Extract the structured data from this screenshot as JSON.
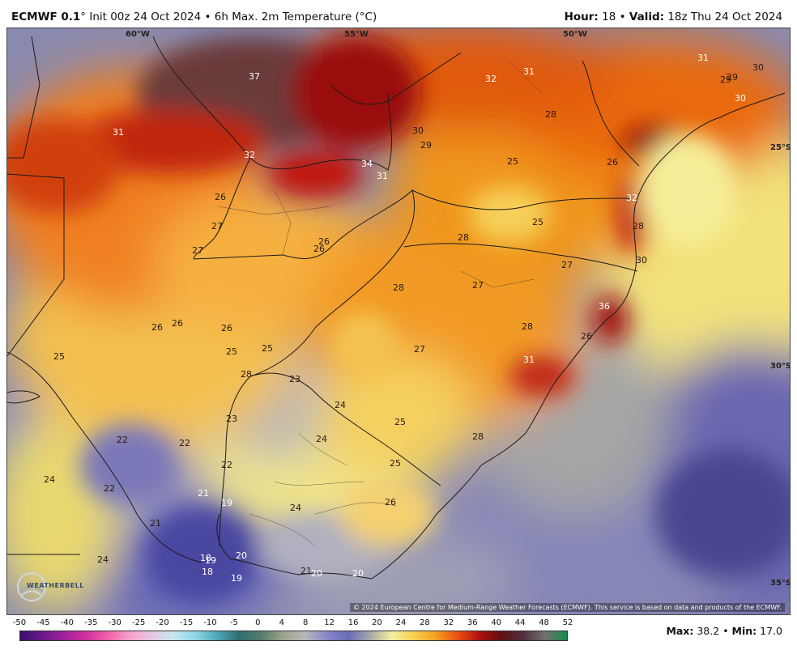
{
  "header": {
    "model": "ECMWF 0.1",
    "model_rest": "° Init 00z 24 Oct 2024 • 6h Max. 2m Temperature (°C)",
    "hour_label": "Hour:",
    "hour_value": "18",
    "sep": "•",
    "valid_label": "Valid:",
    "valid_value": "18z Thu 24 Oct 2024"
  },
  "map": {
    "lon_labels": [
      "60°W",
      "55°W",
      "50°W"
    ],
    "lat_labels": [
      "25°S",
      "30°S",
      "35°S"
    ],
    "credit": "© 2024 European Centre for Medium-Range Weather Forecasts (ECMWF). This service is based on data and products of the ECMWF.",
    "logo": "WEATHERBELL",
    "values": [
      {
        "v": "37",
        "t": "light"
      },
      {
        "v": "32",
        "t": "light"
      },
      {
        "v": "31",
        "t": "light"
      },
      {
        "v": "31",
        "t": "light"
      },
      {
        "v": "29",
        "t": "dark"
      },
      {
        "v": "29",
        "t": "dark"
      },
      {
        "v": "30",
        "t": "dark"
      },
      {
        "v": "30",
        "t": "light"
      },
      {
        "v": "31",
        "t": "light"
      },
      {
        "v": "32",
        "t": "light"
      },
      {
        "v": "34",
        "t": "light"
      },
      {
        "v": "31",
        "t": "light"
      },
      {
        "v": "30",
        "t": "dark"
      },
      {
        "v": "29",
        "t": "dark"
      },
      {
        "v": "28",
        "t": "dark"
      },
      {
        "v": "25",
        "t": "dark"
      },
      {
        "v": "26",
        "t": "dark"
      },
      {
        "v": "32",
        "t": "light"
      },
      {
        "v": "26",
        "t": "dark"
      },
      {
        "v": "27",
        "t": "dark"
      },
      {
        "v": "27",
        "t": "dark"
      },
      {
        "v": "26",
        "t": "dark"
      },
      {
        "v": "26",
        "t": "dark"
      },
      {
        "v": "25",
        "t": "dark"
      },
      {
        "v": "28",
        "t": "dark"
      },
      {
        "v": "28",
        "t": "dark"
      },
      {
        "v": "27",
        "t": "dark"
      },
      {
        "v": "27",
        "t": "dark"
      },
      {
        "v": "28",
        "t": "dark"
      },
      {
        "v": "30",
        "t": "dark"
      },
      {
        "v": "36",
        "t": "light"
      },
      {
        "v": "28",
        "t": "dark"
      },
      {
        "v": "26",
        "t": "dark"
      },
      {
        "v": "31",
        "t": "light"
      },
      {
        "v": "27",
        "t": "dark"
      },
      {
        "v": "26",
        "t": "dark"
      },
      {
        "v": "26",
        "t": "dark"
      },
      {
        "v": "26",
        "t": "dark"
      },
      {
        "v": "25",
        "t": "dark"
      },
      {
        "v": "25",
        "t": "dark"
      },
      {
        "v": "25",
        "t": "dark"
      },
      {
        "v": "28",
        "t": "dark"
      },
      {
        "v": "23",
        "t": "dark"
      },
      {
        "v": "24",
        "t": "dark"
      },
      {
        "v": "25",
        "t": "dark"
      },
      {
        "v": "23",
        "t": "dark"
      },
      {
        "v": "24",
        "t": "dark"
      },
      {
        "v": "28",
        "t": "dark"
      },
      {
        "v": "22",
        "t": "dark"
      },
      {
        "v": "22",
        "t": "dark"
      },
      {
        "v": "25",
        "t": "dark"
      },
      {
        "v": "22",
        "t": "dark"
      },
      {
        "v": "24",
        "t": "dark"
      },
      {
        "v": "22",
        "t": "dark"
      },
      {
        "v": "21",
        "t": "light"
      },
      {
        "v": "19",
        "t": "light"
      },
      {
        "v": "24",
        "t": "dark"
      },
      {
        "v": "26",
        "t": "dark"
      },
      {
        "v": "21",
        "t": "dark"
      },
      {
        "v": "24",
        "t": "dark"
      },
      {
        "v": "18",
        "t": "light"
      },
      {
        "v": "19",
        "t": "light"
      },
      {
        "v": "18",
        "t": "light"
      },
      {
        "v": "20",
        "t": "light"
      },
      {
        "v": "19",
        "t": "light"
      },
      {
        "v": "21",
        "t": "dark"
      },
      {
        "v": "20",
        "t": "light"
      },
      {
        "v": "20",
        "t": "light"
      }
    ]
  },
  "colorbar": {
    "ticks": [
      "-50",
      "-45",
      "-40",
      "-35",
      "-30",
      "-25",
      "-20",
      "-15",
      "-10",
      "-5",
      "0",
      "4",
      "8",
      "12",
      "16",
      "20",
      "24",
      "28",
      "32",
      "36",
      "40",
      "44",
      "48",
      "52"
    ],
    "colors": [
      "#3b0f6b",
      "#6a1a8a",
      "#a0219a",
      "#d0309c",
      "#f060a8",
      "#f6a0c8",
      "#e6c6e0",
      "#c8e6f0",
      "#8fd6e6",
      "#4fa8b8",
      "#2e6e70",
      "#567a6a",
      "#9aa48a",
      "#b8b8b8",
      "#8888c8",
      "#6a6ab8",
      "#a8a8a8",
      "#f4f0a0",
      "#f6d050",
      "#f5a020",
      "#e85010",
      "#b01010",
      "#601010",
      "#503040",
      "#707070",
      "#1a8a4a"
    ]
  },
  "footer": {
    "max_label": "Max:",
    "max_value": "38.2",
    "min_label": "Min:",
    "min_value": "17.0"
  }
}
